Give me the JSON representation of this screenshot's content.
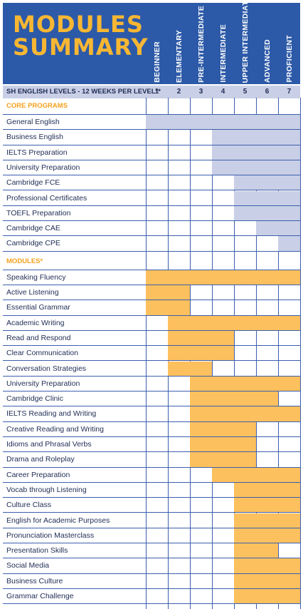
{
  "title": {
    "line1": "MODULES",
    "line2": "SUMMARY"
  },
  "levels": [
    {
      "name": "BEGINNER",
      "num": "1"
    },
    {
      "name": "ELEMENTARY",
      "num": "2"
    },
    {
      "name": "PRE-INTERMEDIATE",
      "num": "3"
    },
    {
      "name": "INTERMEDIATE",
      "num": "4"
    },
    {
      "name": "UPPER INTERMEDIATE",
      "num": "5"
    },
    {
      "name": "ADVANCED",
      "num": "6"
    },
    {
      "name": "PROFICIENT",
      "num": "7"
    }
  ],
  "subheader": "SH ENGLISH LEVELS - 12 WEEKS PER LEVEL**",
  "colors": {
    "header_bg": "#2d5aa8",
    "title": "#f7b733",
    "core_bar": "#c9cfe6",
    "module_bar": "#fcc05e",
    "section_label": "#f4a21d",
    "text": "#1f2d55"
  },
  "chart_data": {
    "type": "table",
    "sections": [
      {
        "label": "CORE PROGRAMS",
        "kind": "core",
        "rows": [
          {
            "name": "General English",
            "from": 1,
            "to": 7
          },
          {
            "name": "Business English",
            "from": 4,
            "to": 7
          },
          {
            "name": "IELTS Preparation",
            "from": 4,
            "to": 7
          },
          {
            "name": "University Preparation",
            "from": 4,
            "to": 7
          },
          {
            "name": "Cambridge FCE",
            "from": 5,
            "to": 7
          },
          {
            "name": "Professional Certificates",
            "from": 5,
            "to": 7
          },
          {
            "name": "TOEFL Preparation",
            "from": 5,
            "to": 7
          },
          {
            "name": "Cambridge CAE",
            "from": 6,
            "to": 7
          },
          {
            "name": "Cambridge CPE",
            "from": 7,
            "to": 7
          }
        ]
      },
      {
        "label": "MODULES*",
        "kind": "module",
        "rows": [
          {
            "name": "Speaking Fluency",
            "from": 1,
            "to": 7
          },
          {
            "name": "Active Listening",
            "from": 1,
            "to": 2
          },
          {
            "name": "Essential Grammar",
            "from": 1,
            "to": 2
          },
          {
            "name": "Academic Writing",
            "from": 2,
            "to": 7
          },
          {
            "name": "Read and Respond",
            "from": 2,
            "to": 4
          },
          {
            "name": "Clear Communication",
            "from": 2,
            "to": 4
          },
          {
            "name": "Conversation Strategies",
            "from": 2,
            "to": 3
          },
          {
            "name": "University Preparation",
            "from": 3,
            "to": 7
          },
          {
            "name": "Cambridge Clinic",
            "from": 3,
            "to": 6
          },
          {
            "name": "IELTS Reading and Writing",
            "from": 3,
            "to": 7
          },
          {
            "name": "Creative Reading and Writing",
            "from": 3,
            "to": 5
          },
          {
            "name": "Idioms and Phrasal Verbs",
            "from": 3,
            "to": 5
          },
          {
            "name": "Drama and Roleplay",
            "from": 3,
            "to": 5
          },
          {
            "name": "Career Preparation",
            "from": 4,
            "to": 7
          },
          {
            "name": "Vocab through Listening",
            "from": 5,
            "to": 7
          },
          {
            "name": "Culture Class",
            "from": 5,
            "to": 7
          },
          {
            "name": "English for Academic Purposes",
            "from": 5,
            "to": 7
          },
          {
            "name": "Pronunciation Masterclass",
            "from": 5,
            "to": 7
          },
          {
            "name": "Presentation Skills",
            "from": 5,
            "to": 6
          },
          {
            "name": "Social Media",
            "from": 5,
            "to": 7
          },
          {
            "name": "Business Culture",
            "from": 5,
            "to": 7
          },
          {
            "name": "Grammar Challenge",
            "from": 5,
            "to": 7
          }
        ]
      }
    ]
  }
}
